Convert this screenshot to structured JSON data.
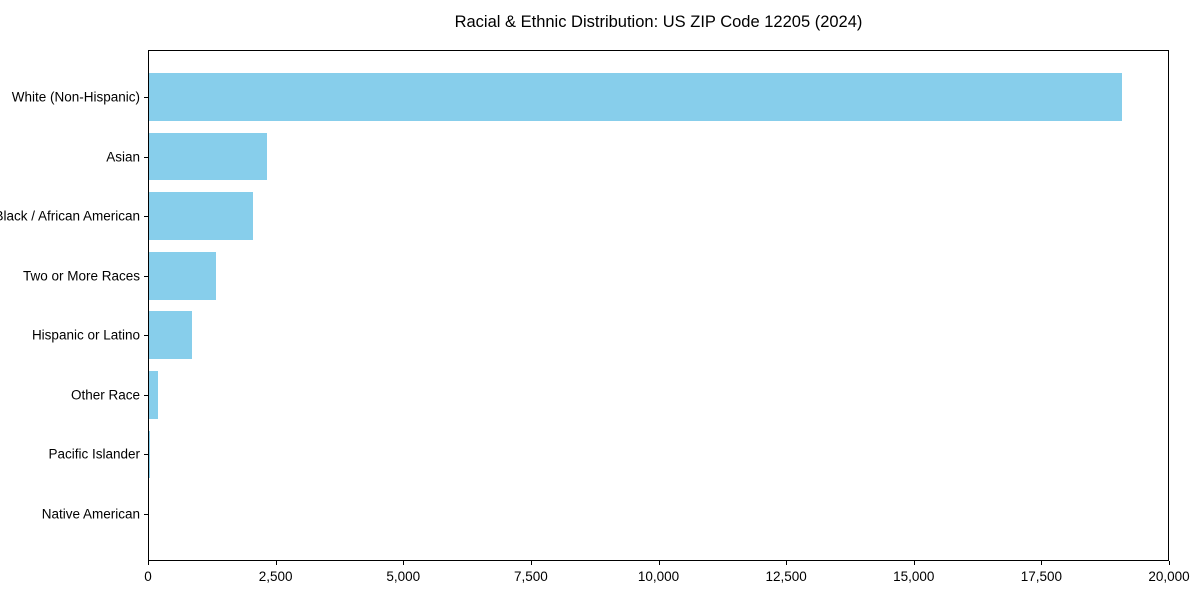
{
  "title": "Racial & Ethnic Distribution: US ZIP Code 12205 (2024)",
  "colors": {
    "bar": "#87CEEB",
    "axis": "#000000",
    "text": "#000000",
    "background": "#FFFFFF"
  },
  "chart_data": {
    "type": "bar",
    "orientation": "horizontal",
    "title": "Racial & Ethnic Distribution: US ZIP Code 12205 (2024)",
    "categories": [
      "White (Non-Hispanic)",
      "Asian",
      "Black / African American",
      "Two or More Races",
      "Hispanic or Latino",
      "Other Race",
      "Pacific Islander",
      "Native American"
    ],
    "values": [
      19080,
      2340,
      2055,
      1340,
      855,
      190,
      40,
      10
    ],
    "xlabel": "",
    "ylabel": "",
    "xlim": [
      0,
      20000
    ],
    "x_ticks": [
      0,
      2500,
      5000,
      7500,
      10000,
      12500,
      15000,
      17500,
      20000
    ],
    "x_tick_labels": [
      "0",
      "2,500",
      "5,000",
      "7,500",
      "10,000",
      "12,500",
      "15,000",
      "17,500",
      "20,000"
    ],
    "grid": false,
    "legend": false,
    "bar_color": "#87CEEB"
  }
}
